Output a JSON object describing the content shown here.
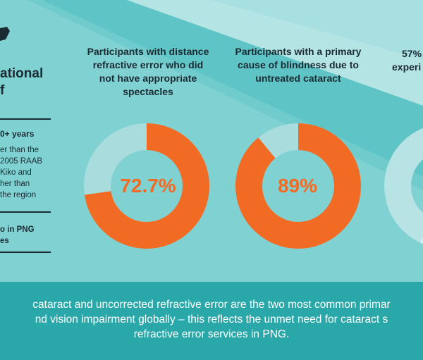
{
  "colors": {
    "accent": "#f26b24",
    "donut_track": "#a9dcdd",
    "band_dark": "#5ec4c5",
    "band_light": "#b5e4e5",
    "bottom_band": "#2aa8a9",
    "text_dark": "#1b2b33"
  },
  "left_panel": {
    "title_line1": "ational",
    "title_line2": "f",
    "heading": "0+ years",
    "lines": [
      "er than the",
      "2005 RAAB",
      "Kiko and",
      "her than",
      "the region"
    ],
    "bold_lines": [
      "o in PNG",
      "es"
    ]
  },
  "stats": [
    {
      "title_lines": [
        "Participants with distance",
        "refractive error who did",
        "not have appropriate",
        "spectacles"
      ],
      "percent_label": "72.7%",
      "value": 72.7
    },
    {
      "title_lines": [
        "Participants with a primary",
        "cause of blindness due to",
        "untreated cataract"
      ],
      "percent_label": "89%",
      "value": 89
    },
    {
      "title_lines": [
        "57%",
        "experi"
      ],
      "percent_label": "",
      "value": 57
    }
  ],
  "bottom": {
    "lines": [
      "cataract and uncorrected refractive error are the two most common primar",
      "nd vision impairment globally – this reflects the unmet need for cataract s",
      "refractive error services in PNG."
    ]
  }
}
